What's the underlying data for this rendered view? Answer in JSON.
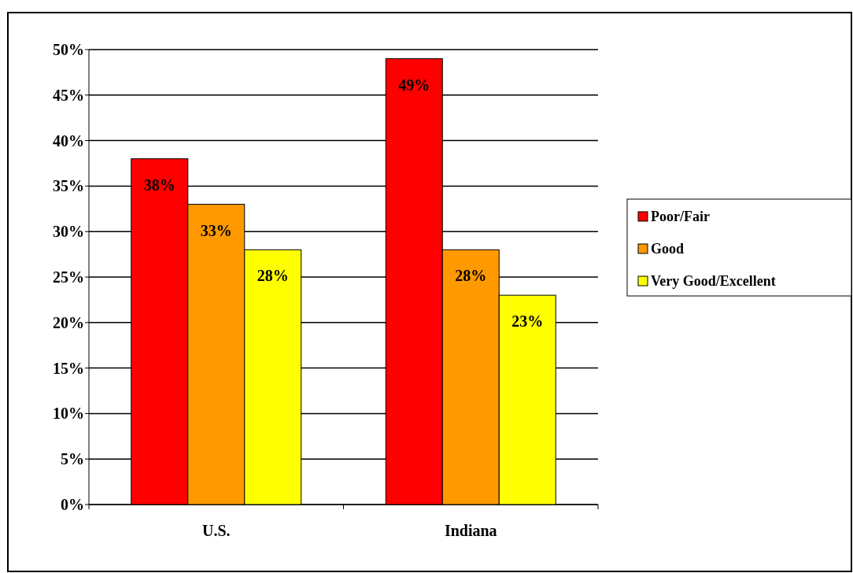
{
  "chart_data": {
    "type": "bar",
    "categories": [
      "U.S.",
      "Indiana"
    ],
    "series": [
      {
        "name": "Poor/Fair",
        "color": "#ff0000",
        "values": [
          38,
          49
        ],
        "value_labels": [
          "38%",
          "49%"
        ]
      },
      {
        "name": "Good",
        "color": "#ff9900",
        "values": [
          33,
          28
        ],
        "value_labels": [
          "33%",
          "28%"
        ]
      },
      {
        "name": "Very Good/Excellent",
        "color": "#ffff00",
        "values": [
          28,
          23
        ],
        "value_labels": [
          "28%",
          "23%"
        ]
      }
    ],
    "ylim": [
      0,
      50
    ],
    "yticks": [
      {
        "value": 0,
        "label": "0%"
      },
      {
        "value": 5,
        "label": "5%"
      },
      {
        "value": 10,
        "label": "10%"
      },
      {
        "value": 15,
        "label": "15%"
      },
      {
        "value": 20,
        "label": "20%"
      },
      {
        "value": 25,
        "label": "25%"
      },
      {
        "value": 30,
        "label": "30%"
      },
      {
        "value": 35,
        "label": "35%"
      },
      {
        "value": 40,
        "label": "40%"
      },
      {
        "value": 45,
        "label": "45%"
      },
      {
        "value": 50,
        "label": "50%"
      }
    ],
    "grid": "y",
    "legend": "right"
  }
}
